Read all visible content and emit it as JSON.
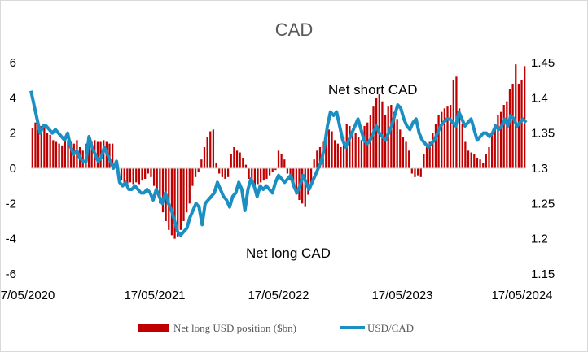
{
  "chart_data": {
    "type": "bar+line",
    "title": "CAD",
    "left_axis": {
      "range": [
        -6,
        6
      ],
      "ticks": [
        "6",
        "4",
        "2",
        "0",
        "-2",
        "-4",
        "-6"
      ]
    },
    "right_axis": {
      "range": [
        1.15,
        1.45
      ],
      "ticks": [
        "1.45",
        "1.4",
        "1.35",
        "1.3",
        "1.25",
        "1.2",
        "1.15"
      ]
    },
    "x_ticks": [
      "7/05/2020",
      "17/05/2021",
      "17/05/2022",
      "17/05/2023",
      "17/05/2024"
    ],
    "annotations": [
      "Net short CAD",
      "Net long CAD"
    ],
    "legend_position": "bottom",
    "series": [
      {
        "name": "Net long USD position ($bn)",
        "kind": "bar",
        "axis": "left",
        "color": "#c00000",
        "values": [
          2.3,
          2.6,
          2.2,
          2.4,
          2.5,
          2.0,
          1.9,
          1.6,
          1.5,
          1.4,
          1.3,
          1.8,
          1.6,
          1.5,
          1.4,
          1.6,
          1.2,
          1.0,
          1.4,
          1.6,
          1.5,
          1.6,
          1.5,
          1.5,
          1.6,
          1.5,
          1.4,
          1.4,
          0.2,
          -0.5,
          -0.7,
          -0.8,
          -0.9,
          -0.8,
          -0.9,
          -0.8,
          -0.9,
          -0.7,
          -0.6,
          -0.3,
          -0.5,
          -1.0,
          -1.5,
          -2.0,
          -2.5,
          -3.0,
          -3.5,
          -3.8,
          -4.0,
          -3.9,
          -3.5,
          -3.0,
          -2.5,
          -2.0,
          -1.0,
          -0.5,
          -0.2,
          0.5,
          1.2,
          1.8,
          2.1,
          2.2,
          0.3,
          -0.3,
          -0.5,
          -0.6,
          -0.5,
          0.8,
          1.2,
          1.0,
          0.9,
          0.6,
          0.2,
          -0.6,
          -0.9,
          -1.0,
          -0.9,
          -0.8,
          -0.7,
          -0.6,
          -0.4,
          -0.2,
          -0.1,
          1.0,
          0.8,
          0.5,
          -0.3,
          -0.7,
          -0.8,
          -1.5,
          -1.8,
          -2.0,
          -2.2,
          -1.5,
          -0.8,
          0.5,
          1.0,
          1.2,
          1.5,
          1.8,
          2.2,
          2.1,
          1.6,
          1.4,
          1.2,
          1.8,
          2.5,
          2.4,
          2.2,
          2.0,
          1.8,
          1.6,
          2.4,
          2.6,
          3.0,
          3.5,
          4.0,
          4.2,
          3.8,
          3.0,
          3.5,
          3.6,
          3.2,
          2.8,
          2.2,
          1.8,
          1.5,
          1.0,
          -0.3,
          -0.5,
          -0.4,
          -0.5,
          0.8,
          1.2,
          1.5,
          2.0,
          2.5,
          3.0,
          3.2,
          3.4,
          3.5,
          3.6,
          5.0,
          5.2,
          3.4,
          2.5,
          1.5,
          1.0,
          0.9,
          0.8,
          0.6,
          0.5,
          0.3,
          0.8,
          1.2,
          2.0,
          2.5,
          3.0,
          3.2,
          3.6,
          3.8,
          4.5,
          4.8,
          5.9,
          4.8,
          5.0,
          5.8
        ]
      },
      {
        "name": "USD/CAD",
        "kind": "line",
        "axis": "right",
        "color": "#1b8fc2",
        "values": [
          1.41,
          1.39,
          1.37,
          1.35,
          1.36,
          1.36,
          1.355,
          1.35,
          1.355,
          1.35,
          1.345,
          1.34,
          1.35,
          1.33,
          1.32,
          1.325,
          1.315,
          1.31,
          1.31,
          1.345,
          1.33,
          1.32,
          1.31,
          1.315,
          1.33,
          1.32,
          1.31,
          1.3,
          1.31,
          1.28,
          1.275,
          1.28,
          1.27,
          1.27,
          1.275,
          1.27,
          1.265,
          1.265,
          1.27,
          1.265,
          1.255,
          1.27,
          1.26,
          1.25,
          1.265,
          1.25,
          1.24,
          1.225,
          1.21,
          1.205,
          1.21,
          1.215,
          1.23,
          1.24,
          1.25,
          1.245,
          1.22,
          1.25,
          1.255,
          1.26,
          1.265,
          1.28,
          1.27,
          1.26,
          1.255,
          1.245,
          1.26,
          1.265,
          1.28,
          1.27,
          1.24,
          1.27,
          1.285,
          1.275,
          1.26,
          1.275,
          1.27,
          1.275,
          1.27,
          1.265,
          1.28,
          1.29,
          1.285,
          1.28,
          1.285,
          1.29,
          1.275,
          1.265,
          1.275,
          1.29,
          1.28,
          1.27,
          1.28,
          1.29,
          1.3,
          1.31,
          1.33,
          1.36,
          1.38,
          1.375,
          1.38,
          1.36,
          1.34,
          1.33,
          1.34,
          1.35,
          1.36,
          1.37,
          1.355,
          1.34,
          1.335,
          1.34,
          1.35,
          1.36,
          1.35,
          1.345,
          1.34,
          1.35,
          1.36,
          1.375,
          1.39,
          1.385,
          1.37,
          1.36,
          1.355,
          1.365,
          1.37,
          1.35,
          1.34,
          1.335,
          1.33,
          1.335,
          1.34,
          1.35,
          1.36,
          1.365,
          1.37,
          1.37,
          1.365,
          1.36,
          1.38,
          1.37,
          1.36,
          1.365,
          1.37,
          1.355,
          1.34,
          1.345,
          1.35,
          1.35,
          1.345,
          1.35,
          1.36,
          1.355,
          1.36,
          1.37,
          1.36,
          1.375,
          1.37,
          1.36,
          1.365,
          1.37,
          1.365
        ]
      }
    ]
  }
}
